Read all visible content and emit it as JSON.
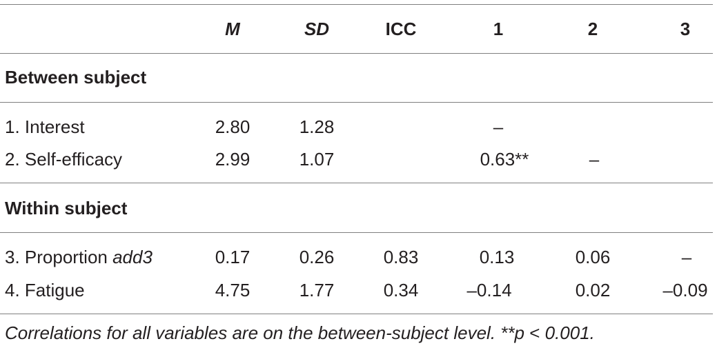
{
  "header": {
    "col_m": "M",
    "col_sd": "SD",
    "col_icc": "ICC",
    "col_1": "1",
    "col_2": "2",
    "col_3": "3"
  },
  "sections": {
    "between": "Between subject",
    "within": "Within subject"
  },
  "rows": {
    "interest": {
      "label": "1. Interest",
      "m": "2.80",
      "sd": "1.28",
      "icc": "",
      "r1": "–",
      "r2": "",
      "r3": ""
    },
    "self_efficacy": {
      "label": "2. Self-efficacy",
      "m": "2.99",
      "sd": "1.07",
      "icc": "",
      "r1": "0.63**",
      "r2": "–",
      "r3": ""
    },
    "proportion": {
      "label_prefix": "3. Proportion ",
      "label_italic": "add3",
      "m": "0.17",
      "sd": "0.26",
      "icc": "0.83",
      "r1": "0.13",
      "r2": "0.06",
      "r3": "–"
    },
    "fatigue": {
      "label": "4. Fatigue",
      "m": "4.75",
      "sd": "1.77",
      "icc": "0.34",
      "r1": "–0.14",
      "r2": "0.02",
      "r3": "–0.09"
    }
  },
  "note": {
    "text_a": "Correlations for all variables are on the between-subject level. **",
    "text_b": "p",
    "text_c": " < ",
    "text_d": "0.001."
  }
}
